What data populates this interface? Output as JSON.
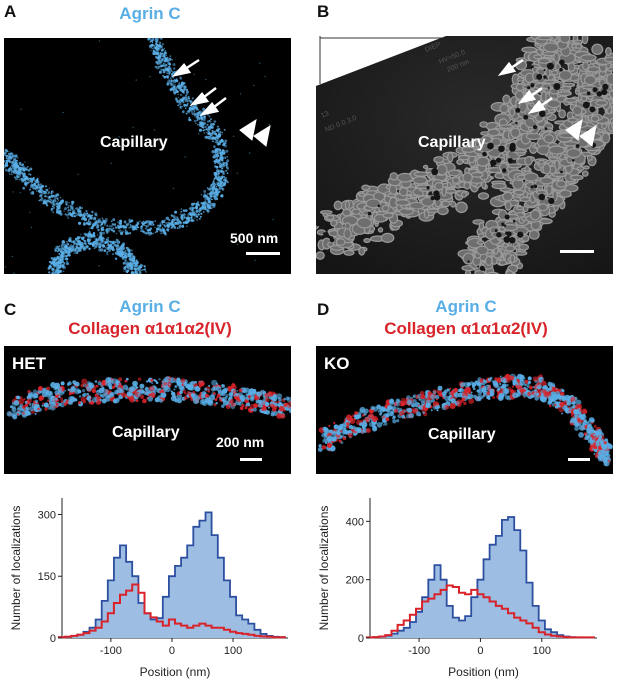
{
  "panels": {
    "A": {
      "letter": "A",
      "title": "Agrin C",
      "region_label": "Capillary",
      "scalebar_label": "500 nm"
    },
    "B": {
      "letter": "B",
      "region_label": "Capillary",
      "label_fragments": [
        "13",
        "ND 0.0 3.0",
        "200 nm",
        "HV=50.0",
        "DIEP"
      ]
    },
    "C": {
      "letter": "C",
      "title1": "Agrin C",
      "title2": "Collagen α1α1α2(IV)",
      "condition": "HET",
      "region_label": "Capillary",
      "scalebar_label": "200 nm"
    },
    "D": {
      "letter": "D",
      "title1": "Agrin C",
      "title2": "Collagen α1α1α2(IV)",
      "condition": "KO",
      "region_label": "Capillary"
    }
  },
  "colors": {
    "agrin": "#5aaee6",
    "collagen": "#d8232a",
    "hist_fill": "#9dbde3",
    "hist_line": "#2d4fa0"
  },
  "chart_data": [
    {
      "type": "area",
      "panel": "C",
      "xlabel": "Position (nm)",
      "ylabel": "Number of localizations",
      "xlim": [
        -180,
        190
      ],
      "ylim": [
        0,
        340
      ],
      "xticks": [
        -100,
        0,
        100
      ],
      "yticks": [
        0,
        150,
        300
      ],
      "series": [
        {
          "color": "blue",
          "x": [
            -180,
            -170,
            -160,
            -150,
            -140,
            -130,
            -120,
            -110,
            -100,
            -90,
            -80,
            -70,
            -60,
            -50,
            -40,
            -30,
            -20,
            -10,
            0,
            10,
            20,
            30,
            40,
            50,
            60,
            70,
            80,
            90,
            100,
            110,
            120,
            130,
            140,
            150,
            160,
            170,
            180
          ],
          "values": [
            2,
            3,
            5,
            8,
            15,
            25,
            45,
            90,
            140,
            195,
            225,
            185,
            150,
            85,
            60,
            45,
            48,
            100,
            150,
            175,
            195,
            225,
            270,
            285,
            305,
            250,
            195,
            140,
            100,
            55,
            45,
            35,
            20,
            10,
            5,
            3,
            2
          ]
        },
        {
          "color": "red",
          "x": [
            -180,
            -170,
            -160,
            -150,
            -140,
            -130,
            -120,
            -110,
            -100,
            -90,
            -80,
            -70,
            -60,
            -50,
            -40,
            -30,
            -20,
            -10,
            0,
            10,
            20,
            30,
            40,
            50,
            60,
            70,
            80,
            90,
            100,
            110,
            120,
            130,
            140,
            150,
            160,
            170,
            180
          ],
          "values": [
            2,
            3,
            5,
            8,
            12,
            18,
            25,
            40,
            60,
            85,
            105,
            115,
            130,
            110,
            60,
            50,
            40,
            30,
            45,
            35,
            30,
            25,
            30,
            35,
            30,
            25,
            25,
            20,
            15,
            12,
            10,
            8,
            5,
            4,
            3,
            2,
            2
          ]
        }
      ]
    },
    {
      "type": "area",
      "panel": "D",
      "xlabel": "Position (nm)",
      "ylabel": "Number of localizations",
      "xlim": [
        -180,
        190
      ],
      "ylim": [
        0,
        480
      ],
      "xticks": [
        -100,
        0,
        100
      ],
      "yticks": [
        0,
        200,
        400
      ],
      "series": [
        {
          "color": "blue",
          "x": [
            -180,
            -170,
            -160,
            -150,
            -140,
            -130,
            -120,
            -110,
            -100,
            -90,
            -80,
            -70,
            -60,
            -50,
            -40,
            -30,
            -20,
            -10,
            0,
            10,
            20,
            30,
            40,
            50,
            60,
            70,
            80,
            90,
            100,
            110,
            120,
            130,
            140,
            150,
            160,
            170,
            180
          ],
          "values": [
            2,
            3,
            5,
            8,
            15,
            25,
            35,
            55,
            90,
            140,
            200,
            250,
            200,
            110,
            70,
            60,
            75,
            140,
            200,
            270,
            320,
            350,
            405,
            415,
            370,
            300,
            190,
            110,
            60,
            30,
            20,
            10,
            5,
            3,
            2,
            2,
            2
          ]
        },
        {
          "color": "red",
          "x": [
            -180,
            -170,
            -160,
            -150,
            -140,
            -130,
            -120,
            -110,
            -100,
            -90,
            -80,
            -70,
            -60,
            -50,
            -40,
            -30,
            -20,
            -10,
            0,
            10,
            20,
            30,
            40,
            50,
            60,
            70,
            80,
            90,
            100,
            110,
            120,
            130,
            140,
            150,
            160,
            170,
            180
          ],
          "values": [
            2,
            3,
            5,
            10,
            25,
            45,
            60,
            80,
            100,
            125,
            135,
            150,
            165,
            180,
            175,
            155,
            150,
            165,
            150,
            140,
            125,
            110,
            100,
            85,
            70,
            60,
            50,
            35,
            20,
            12,
            8,
            5,
            3,
            2,
            2,
            2,
            2
          ]
        }
      ]
    }
  ]
}
